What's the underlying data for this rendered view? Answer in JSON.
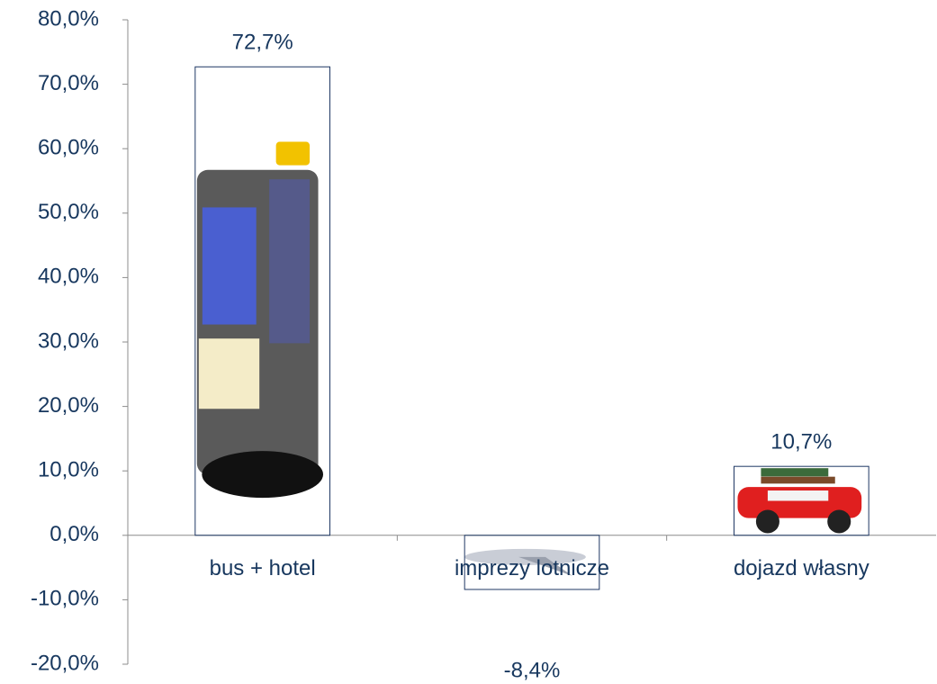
{
  "chart_data": {
    "type": "bar",
    "categories": [
      "bus + hotel",
      "imprezy lotnicze",
      "dojazd własny"
    ],
    "values": [
      72.7,
      -8.4,
      10.7
    ],
    "value_labels": [
      "72,7%",
      "-8,4%",
      "10,7%"
    ],
    "color": "#1f3864",
    "ylim": [
      -20,
      80
    ],
    "yticks": [
      {
        "value": -20,
        "label": "-20,0%"
      },
      {
        "value": -10,
        "label": "-10,0%"
      },
      {
        "value": 0,
        "label": "0,0%"
      },
      {
        "value": 10,
        "label": "10,0%"
      },
      {
        "value": 20,
        "label": "20,0%"
      },
      {
        "value": 30,
        "label": "30,0%"
      },
      {
        "value": 40,
        "label": "40,0%"
      },
      {
        "value": 50,
        "label": "50,0%"
      },
      {
        "value": 60,
        "label": "60,0%"
      },
      {
        "value": 70,
        "label": "70,0%"
      },
      {
        "value": 80,
        "label": "80,0%"
      }
    ],
    "grid": false
  }
}
